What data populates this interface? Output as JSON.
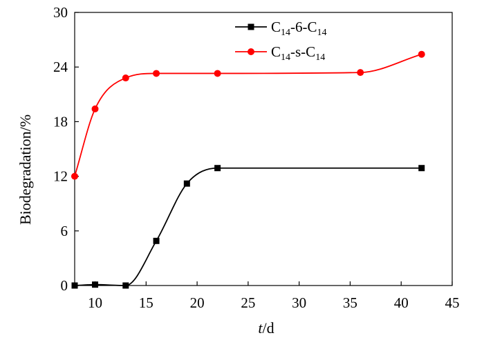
{
  "chart_data": {
    "type": "line",
    "xlabel_italic": "t",
    "xlabel_rest": "/d",
    "ylabel": "Biodegradation/%",
    "xlim": [
      8,
      45
    ],
    "ylim": [
      0,
      30
    ],
    "xticks": [
      10,
      15,
      20,
      25,
      30,
      35,
      40,
      45
    ],
    "yticks": [
      0,
      6,
      12,
      18,
      24,
      30
    ],
    "legend_position": "top-right",
    "grid": false,
    "series": [
      {
        "name_main": "C",
        "name_sub1": "14",
        "name_mid": "-6-C",
        "name_sub2": "14",
        "color": "#000000",
        "marker": "square",
        "x": [
          8,
          10,
          13,
          16,
          19,
          22,
          42
        ],
        "y": [
          0,
          0.1,
          0,
          4.9,
          11.2,
          12.9,
          12.9
        ]
      },
      {
        "name_main": "C",
        "name_sub1": "14",
        "name_mid": "-s-C",
        "name_sub2": "14",
        "color": "#ff0000",
        "marker": "circle",
        "x": [
          8,
          10,
          13,
          16,
          22,
          36,
          42
        ],
        "y": [
          12.0,
          19.4,
          22.8,
          23.3,
          23.3,
          23.4,
          25.4
        ]
      }
    ]
  }
}
